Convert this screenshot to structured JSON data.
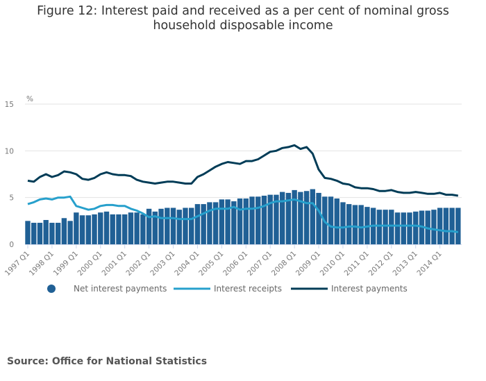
{
  "title_line1": "Figure 12: Interest paid and received as a per cent of nominal gross",
  "title_line2": "household disposable income",
  "source": "Source: Office for National Statistics",
  "colors": {
    "bars": "#206095",
    "receipts": "#27a0cc",
    "payments": "#003c57",
    "grid": "#e3e3e3",
    "axis": "#ccd6eb"
  },
  "chart_data": {
    "type": "bar",
    "title": "Figure 12: Interest paid and received as a per cent of nominal gross household disposable income",
    "xlabel": "",
    "ylabel": "%",
    "ylim": [
      0,
      15
    ],
    "yticks": [
      0,
      5,
      10,
      15
    ],
    "grid": true,
    "legend_position": "bottom",
    "xtick_labels": [
      "1997 Q1",
      "1998 Q1",
      "1999 Q1",
      "2000 Q1",
      "2001 Q1",
      "2002 Q1",
      "2003 Q1",
      "2004 Q1",
      "2005 Q1",
      "2006 Q1",
      "2007 Q1",
      "2008 Q1",
      "2009 Q1",
      "2010 Q1",
      "2011 Q1",
      "2012 Q1",
      "2013 Q1",
      "2014 Q1"
    ],
    "start_year": 1997,
    "quarters": 72,
    "series": [
      {
        "name": "Net interest payments",
        "kind": "bar",
        "values": [
          2.5,
          2.3,
          2.3,
          2.6,
          2.3,
          2.3,
          2.8,
          2.5,
          3.4,
          3.1,
          3.1,
          3.2,
          3.4,
          3.5,
          3.2,
          3.2,
          3.2,
          3.4,
          3.4,
          3.2,
          3.8,
          3.5,
          3.8,
          3.9,
          3.9,
          3.7,
          3.9,
          3.9,
          4.3,
          4.3,
          4.5,
          4.5,
          4.8,
          4.8,
          4.6,
          4.9,
          4.9,
          5.1,
          5.1,
          5.2,
          5.3,
          5.3,
          5.6,
          5.5,
          5.8,
          5.6,
          5.7,
          5.9,
          5.5,
          5.1,
          5.1,
          4.9,
          4.5,
          4.3,
          4.2,
          4.2,
          4.0,
          3.9,
          3.7,
          3.7,
          3.7,
          3.4,
          3.4,
          3.4,
          3.5,
          3.6,
          3.6,
          3.7,
          3.9,
          3.9,
          3.9,
          3.9
        ]
      },
      {
        "name": "Interest receipts",
        "kind": "line",
        "values": [
          4.3,
          4.5,
          4.8,
          4.9,
          4.8,
          5.0,
          5.0,
          5.1,
          4.1,
          3.9,
          3.7,
          3.8,
          4.1,
          4.2,
          4.2,
          4.1,
          4.1,
          3.8,
          3.6,
          3.3,
          2.9,
          3.0,
          2.8,
          2.8,
          2.8,
          2.7,
          2.7,
          2.7,
          3.0,
          3.3,
          3.6,
          3.8,
          3.8,
          3.8,
          4.0,
          3.7,
          3.8,
          3.8,
          3.9,
          4.1,
          4.4,
          4.6,
          4.6,
          4.7,
          4.8,
          4.6,
          4.4,
          4.4,
          3.6,
          2.4,
          1.9,
          1.8,
          1.8,
          1.9,
          1.9,
          1.8,
          1.9,
          2.0,
          2.0,
          2.0,
          2.0,
          2.0,
          2.0,
          2.0,
          2.0,
          1.9,
          1.7,
          1.6,
          1.5,
          1.4,
          1.4,
          1.3
        ]
      },
      {
        "name": "Interest payments",
        "kind": "line",
        "values": [
          6.8,
          6.7,
          7.2,
          7.5,
          7.2,
          7.4,
          7.8,
          7.7,
          7.5,
          7.0,
          6.9,
          7.1,
          7.5,
          7.7,
          7.5,
          7.4,
          7.4,
          7.3,
          6.9,
          6.7,
          6.6,
          6.5,
          6.6,
          6.7,
          6.7,
          6.6,
          6.5,
          6.5,
          7.2,
          7.5,
          7.9,
          8.3,
          8.6,
          8.8,
          8.7,
          8.6,
          8.9,
          8.9,
          9.1,
          9.5,
          9.9,
          10.0,
          10.3,
          10.4,
          10.6,
          10.2,
          10.4,
          9.7,
          8.0,
          7.1,
          7.0,
          6.8,
          6.5,
          6.4,
          6.1,
          6.0,
          6.0,
          5.9,
          5.7,
          5.7,
          5.8,
          5.6,
          5.5,
          5.5,
          5.6,
          5.5,
          5.4,
          5.4,
          5.5,
          5.3,
          5.3,
          5.2
        ]
      }
    ]
  }
}
